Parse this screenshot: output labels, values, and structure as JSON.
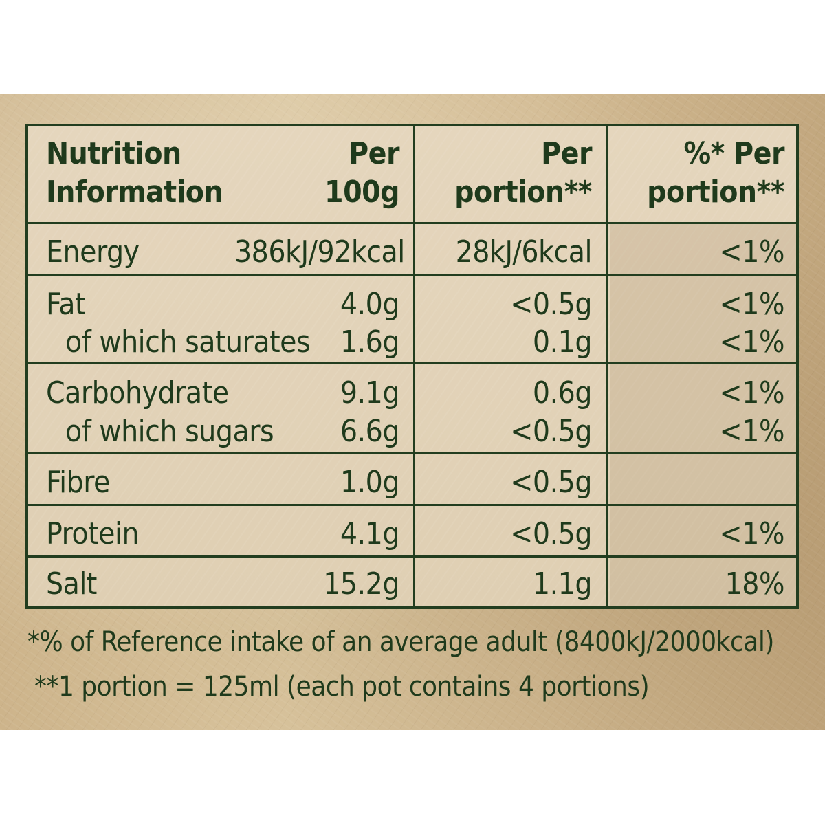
{
  "header": {
    "col1": [
      "Nutrition",
      "Information"
    ],
    "col2": [
      "Per",
      "100g"
    ],
    "col3": [
      "Per",
      "portion**"
    ],
    "col4": [
      "%* Per",
      "portion**"
    ]
  },
  "rows": {
    "energy": {
      "name": "Energy",
      "per100g": "386kJ/92kcal",
      "perportion": "28kJ/6kcal",
      "ri": "<1%"
    },
    "fat": {
      "name": "Fat",
      "per100g": "4.0g",
      "perportion": "<0.5g",
      "ri": "<1%"
    },
    "saturates": {
      "name": "of which saturates",
      "per100g": "1.6g",
      "perportion": "0.1g",
      "ri": "<1%"
    },
    "carbs": {
      "name": "Carbohydrate",
      "per100g": "9.1g",
      "perportion": "0.6g",
      "ri": "<1%"
    },
    "sugars": {
      "name": "of which sugars",
      "per100g": "6.6g",
      "perportion": "<0.5g",
      "ri": "<1%"
    },
    "fibre": {
      "name": "Fibre",
      "per100g": "1.0g",
      "perportion": "<0.5g",
      "ri": ""
    },
    "protein": {
      "name": "Protein",
      "per100g": "4.1g",
      "perportion": "<0.5g",
      "ri": "<1%"
    },
    "salt": {
      "name": "Salt",
      "per100g": "15.2g",
      "perportion": "1.1g",
      "ri": "18%"
    }
  },
  "footnotes": {
    "reference": "*% of Reference intake of an average adult (8400kJ/2000kcal)",
    "portion": "**1 portion = 125ml (each pot contains 4 portions)"
  },
  "colors": {
    "ink": "#1f3a1c",
    "border": "#223d1f",
    "panel": "#d2ba92"
  }
}
